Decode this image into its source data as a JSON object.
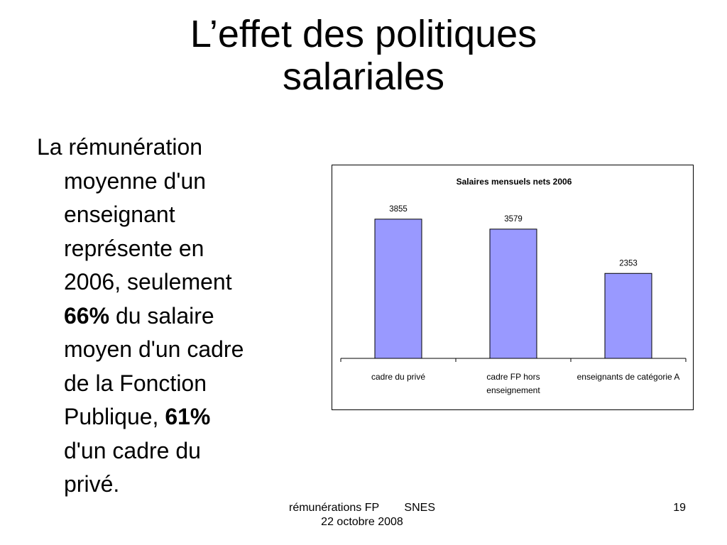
{
  "slide": {
    "title_lines": [
      "L’effet des politiques",
      "salariales"
    ],
    "bullet_lines": [
      {
        "text": "La rémunération"
      },
      {
        "text": "moyenne d'un"
      },
      {
        "text": "enseignant"
      },
      {
        "text": "représente en"
      },
      {
        "text": "2006, seulement"
      },
      {
        "bold": "66%",
        "text": " du salaire"
      },
      {
        "text": "moyen d'un cadre"
      },
      {
        "text": "de la Fonction"
      },
      {
        "text": "Publique, ",
        "bold": "61%"
      },
      {
        "text": "d'un cadre du"
      },
      {
        "text": "privé."
      }
    ],
    "footer": {
      "line1": "rémunérations FP        SNES",
      "line2": "22 octobre 2008",
      "page_number": "19"
    }
  },
  "chart_data": {
    "type": "bar",
    "title": "Salaires mensuels nets 2006",
    "categories": [
      [
        "cadre du privé"
      ],
      [
        "cadre FP hors",
        "enseignement"
      ],
      [
        "enseignants de catégorie A"
      ]
    ],
    "values": [
      3855,
      3579,
      2353
    ],
    "value_labels": [
      "3855",
      "3579",
      "2353"
    ],
    "ylim": [
      0,
      4500
    ],
    "legend": "none",
    "grid": false,
    "colors": {
      "bar_fill": "#9999ff",
      "bar_stroke": "#000000"
    }
  }
}
